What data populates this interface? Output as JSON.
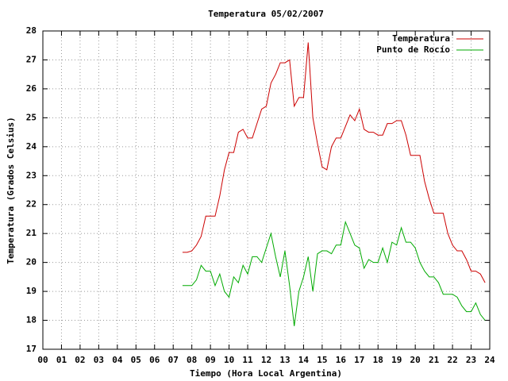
{
  "chart_data": {
    "type": "line",
    "title": "Temperatura 05/02/2007",
    "x_label": "Tiempo (Hora Local Argentina)",
    "y_label": "Temperatura (Grados Celsius)",
    "x": [
      7.5,
      7.75,
      8.0,
      8.25,
      8.5,
      8.75,
      9.0,
      9.25,
      9.5,
      9.75,
      10.0,
      10.25,
      10.5,
      10.75,
      11.0,
      11.25,
      11.5,
      11.75,
      12.0,
      12.25,
      12.5,
      12.75,
      13.0,
      13.25,
      13.5,
      13.75,
      14.0,
      14.25,
      14.5,
      14.75,
      15.0,
      15.25,
      15.5,
      15.75,
      16.0,
      16.25,
      16.5,
      16.75,
      17.0,
      17.25,
      17.5,
      17.75,
      18.0,
      18.25,
      18.5,
      18.75,
      19.0,
      19.25,
      19.5,
      19.75,
      20.0,
      20.25,
      20.5,
      20.75,
      21.0,
      21.25,
      21.5,
      21.75,
      22.0,
      22.25,
      22.5,
      22.75,
      23.0,
      23.25,
      23.5,
      23.75
    ],
    "series": [
      {
        "name": "Temperatura",
        "color": "#cc0000",
        "values": [
          20.35,
          20.35,
          20.4,
          20.6,
          20.9,
          21.6,
          21.6,
          21.6,
          22.3,
          23.2,
          23.8,
          23.8,
          24.5,
          24.6,
          24.3,
          24.3,
          24.8,
          25.3,
          25.4,
          26.2,
          26.5,
          26.9,
          26.9,
          27.0,
          25.4,
          25.7,
          25.7,
          27.6,
          25.0,
          24.1,
          23.3,
          23.2,
          24.0,
          24.3,
          24.3,
          24.7,
          25.1,
          24.9,
          25.3,
          24.6,
          24.5,
          24.5,
          24.4,
          24.4,
          24.8,
          24.8,
          24.9,
          24.9,
          24.4,
          23.7,
          23.7,
          23.7,
          22.8,
          22.2,
          21.7,
          21.7,
          21.7,
          21.0,
          20.6,
          20.4,
          20.4,
          20.1,
          19.7,
          19.7,
          19.6,
          19.3
        ]
      },
      {
        "name": "Punto de Rocío",
        "color": "#00aa00",
        "values": [
          19.2,
          19.2,
          19.2,
          19.4,
          19.9,
          19.7,
          19.7,
          19.2,
          19.6,
          19.0,
          18.8,
          19.5,
          19.3,
          19.9,
          19.6,
          20.2,
          20.2,
          20.0,
          20.5,
          21.0,
          20.2,
          19.5,
          20.4,
          19.2,
          17.8,
          19.0,
          19.5,
          20.2,
          19.0,
          20.3,
          20.4,
          20.4,
          20.3,
          20.6,
          20.6,
          21.4,
          21.0,
          20.6,
          20.5,
          19.8,
          20.1,
          20.0,
          20.0,
          20.5,
          20.0,
          20.7,
          20.6,
          21.2,
          20.7,
          20.7,
          20.5,
          20.0,
          19.7,
          19.5,
          19.5,
          19.3,
          18.9,
          18.9,
          18.9,
          18.8,
          18.5,
          18.3,
          18.3,
          18.6,
          18.2,
          18.0
        ]
      }
    ],
    "xlim": [
      0,
      24
    ],
    "xticks": [
      {
        "value": 0,
        "label": "00"
      },
      {
        "value": 1,
        "label": "01"
      },
      {
        "value": 2,
        "label": "02"
      },
      {
        "value": 3,
        "label": "03"
      },
      {
        "value": 4,
        "label": "04"
      },
      {
        "value": 5,
        "label": "05"
      },
      {
        "value": 6,
        "label": "06"
      },
      {
        "value": 7,
        "label": "07"
      },
      {
        "value": 8,
        "label": "08"
      },
      {
        "value": 9,
        "label": "09"
      },
      10,
      11,
      12,
      13,
      14,
      15,
      16,
      17,
      18,
      19,
      20,
      21,
      22,
      23,
      24
    ],
    "ylim": [
      17,
      28
    ],
    "yticks": [
      17,
      18,
      19,
      20,
      21,
      22,
      23,
      24,
      25,
      26,
      27,
      28
    ],
    "grid": true,
    "legend": "top-right"
  }
}
